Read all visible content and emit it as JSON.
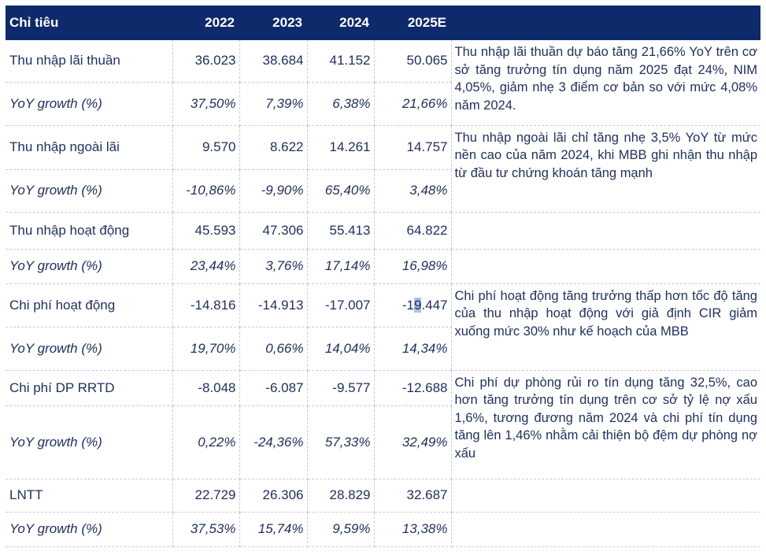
{
  "header": {
    "label": "Chỉ tiêu",
    "years": [
      "2022",
      "2023",
      "2024",
      "2025E"
    ]
  },
  "rows": [
    {
      "label": "Thu nhập lãi thuần",
      "values": [
        "36.023",
        "38.684",
        "41.152",
        "50.065"
      ]
    },
    {
      "label": "YoY growth (%)",
      "values": [
        "37,50%",
        "7,39%",
        "6,38%",
        "21,66%"
      ]
    },
    {
      "label": "Thu nhập ngoài lãi",
      "values": [
        "9.570",
        "8.622",
        "14.261",
        "14.757"
      ]
    },
    {
      "label": "YoY growth (%)",
      "values": [
        "-10,86%",
        "-9,90%",
        "65,40%",
        "3,48%"
      ]
    },
    {
      "label": "Thu nhập hoạt động",
      "values": [
        "45.593",
        "47.306",
        "55.413",
        "64.822"
      ]
    },
    {
      "label": "YoY growth (%)",
      "values": [
        "23,44%",
        "3,76%",
        "17,14%",
        "16,98%"
      ]
    },
    {
      "label": "Chi phí hoạt động",
      "values": [
        "-14.816",
        "-14.913",
        "-17.007",
        "-19.447"
      ]
    },
    {
      "label": "YoY growth (%)",
      "values": [
        "19,70%",
        "0,66%",
        "14,04%",
        "14,34%"
      ]
    },
    {
      "label": "Chi phí DP RRTD",
      "values": [
        "-8.048",
        "-6.087",
        "-9.577",
        "-12.688"
      ]
    },
    {
      "label": "YoY growth (%)",
      "values": [
        "0,22%",
        "-24,36%",
        "57,33%",
        "32,49%"
      ]
    },
    {
      "label": "LNTT",
      "values": [
        "22.729",
        "26.306",
        "28.829",
        "32.687"
      ]
    },
    {
      "label": "YoY growth (%)",
      "values": [
        "37,53%",
        "15,74%",
        "9,59%",
        "13,38%"
      ]
    }
  ],
  "comments": [
    "Thu nhập lãi thuần dự báo tăng 21,66% YoY trên cơ sở tăng trưởng tín dụng năm 2025 đạt 24%, NIM 4,05%, giảm nhẹ 3 điểm cơ bản so với mức 4,08% năm 2024.",
    "Thu nhập ngoài lãi chỉ tăng nhẹ 3,5% YoY từ mức nền cao của năm 2024, khi MBB ghi nhận thu nhập từ đầu tư chứng khoán tăng mạnh",
    "Chi phí hoạt động tăng trưởng thấp hơn tốc độ tăng của thu nhập hoạt động với giả định CIR giảm xuống mức 30% như kế hoạch của MBB",
    "Chi phí dự phòng rủi ro tín dụng tăng 32,5%, cao hơn tăng trưởng tín dụng trên cơ sở tỷ lệ nợ xấu 1,6%, tương đương năm 2024 và chi phí tín dụng tăng lên 1,46% nhằm cải thiện bộ đệm dự phòng nợ xấu"
  ],
  "highlight": {
    "pre": "-1",
    "sel": "9",
    "post": ".447"
  }
}
